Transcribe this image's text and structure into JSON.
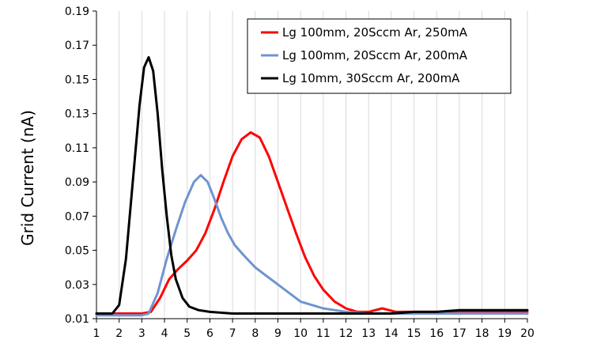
{
  "chart_data": {
    "type": "line",
    "title": "",
    "xlabel": "",
    "ylabel": "Grid Current (nA)",
    "xlim": [
      1,
      20
    ],
    "ylim": [
      0.01,
      0.19
    ],
    "x_ticks": [
      1,
      2,
      3,
      4,
      5,
      6,
      7,
      8,
      9,
      10,
      11,
      12,
      13,
      14,
      15,
      16,
      17,
      18,
      19,
      20
    ],
    "y_ticks": [
      0.01,
      0.03,
      0.05,
      0.07,
      0.09,
      0.11,
      0.13,
      0.15,
      0.17,
      0.19
    ],
    "grid": "vertical",
    "legend_position": "top-right",
    "series": [
      {
        "name": "Lg 100mm, 20Sccm Ar, 250mA",
        "color": "#ff0000",
        "x": [
          1,
          2,
          3,
          3.4,
          3.8,
          4.2,
          4.6,
          5,
          5.4,
          5.8,
          6.2,
          6.6,
          7,
          7.4,
          7.8,
          8.2,
          8.6,
          9,
          9.4,
          9.8,
          10.2,
          10.6,
          11,
          11.5,
          12,
          12.5,
          13,
          13.3,
          13.6,
          13.9,
          14.2,
          14.6,
          15,
          16,
          17,
          18,
          19,
          20
        ],
        "y": [
          0.013,
          0.013,
          0.013,
          0.014,
          0.022,
          0.033,
          0.039,
          0.044,
          0.05,
          0.06,
          0.074,
          0.09,
          0.105,
          0.115,
          0.119,
          0.116,
          0.105,
          0.09,
          0.075,
          0.06,
          0.046,
          0.035,
          0.027,
          0.02,
          0.016,
          0.014,
          0.014,
          0.015,
          0.016,
          0.015,
          0.014,
          0.014,
          0.014,
          0.014,
          0.014,
          0.014,
          0.014,
          0.014
        ]
      },
      {
        "name": "Lg 100mm, 20Sccm Ar, 200mA",
        "color": "#6f94d0",
        "x": [
          1,
          2,
          3,
          3.3,
          3.7,
          4.1,
          4.5,
          4.9,
          5.3,
          5.6,
          5.9,
          6.2,
          6.5,
          6.8,
          7.1,
          7.5,
          8,
          8.5,
          9,
          9.5,
          10,
          10.5,
          11,
          11.5,
          12,
          13,
          14,
          15,
          16,
          17,
          18,
          19,
          20
        ],
        "y": [
          0.012,
          0.012,
          0.012,
          0.013,
          0.025,
          0.045,
          0.062,
          0.078,
          0.09,
          0.094,
          0.09,
          0.08,
          0.069,
          0.06,
          0.053,
          0.047,
          0.04,
          0.035,
          0.03,
          0.025,
          0.02,
          0.018,
          0.016,
          0.015,
          0.014,
          0.013,
          0.013,
          0.013,
          0.013,
          0.013,
          0.013,
          0.013,
          0.013
        ]
      },
      {
        "name": "Lg 10mm, 30Sccm Ar, 200mA",
        "color": "#000000",
        "x": [
          1,
          1.7,
          2,
          2.3,
          2.6,
          2.9,
          3.1,
          3.3,
          3.5,
          3.7,
          3.9,
          4.1,
          4.3,
          4.5,
          4.8,
          5.1,
          5.5,
          6,
          7,
          8,
          9,
          10,
          11,
          12,
          13,
          14,
          15,
          16,
          17,
          18,
          19,
          20
        ],
        "y": [
          0.013,
          0.013,
          0.018,
          0.045,
          0.09,
          0.135,
          0.157,
          0.163,
          0.155,
          0.13,
          0.097,
          0.07,
          0.047,
          0.033,
          0.022,
          0.017,
          0.015,
          0.014,
          0.013,
          0.013,
          0.013,
          0.013,
          0.013,
          0.013,
          0.013,
          0.013,
          0.014,
          0.014,
          0.015,
          0.015,
          0.015,
          0.015
        ]
      }
    ]
  }
}
